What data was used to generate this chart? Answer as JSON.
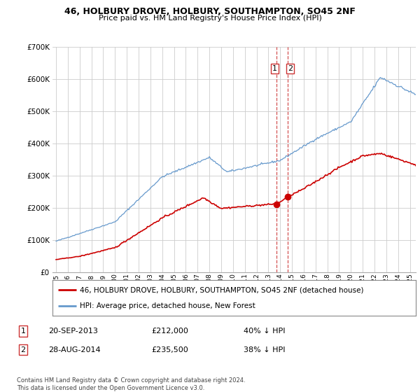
{
  "title1": "46, HOLBURY DROVE, HOLBURY, SOUTHAMPTON, SO45 2NF",
  "title2": "Price paid vs. HM Land Registry's House Price Index (HPI)",
  "legend_label_red": "46, HOLBURY DROVE, HOLBURY, SOUTHAMPTON, SO45 2NF (detached house)",
  "legend_label_blue": "HPI: Average price, detached house, New Forest",
  "transaction1_date": "20-SEP-2013",
  "transaction1_price": "£212,000",
  "transaction1_hpi": "40% ↓ HPI",
  "transaction1_price_val": 212000,
  "transaction2_date": "28-AUG-2014",
  "transaction2_price": "£235,500",
  "transaction2_hpi": "38% ↓ HPI",
  "transaction2_price_val": 235500,
  "footer": "Contains HM Land Registry data © Crown copyright and database right 2024.\nThis data is licensed under the Open Government Licence v3.0.",
  "red_color": "#cc0000",
  "blue_color": "#6699cc",
  "vline_color": "#cc3333",
  "background_color": "#ffffff",
  "grid_color": "#cccccc",
  "ylim": [
    0,
    700000
  ],
  "yticks": [
    0,
    100000,
    200000,
    300000,
    400000,
    500000,
    600000,
    700000
  ],
  "xstart": 1994.7,
  "xend": 2025.5,
  "transaction1_x": 2013.72,
  "transaction2_x": 2014.66
}
